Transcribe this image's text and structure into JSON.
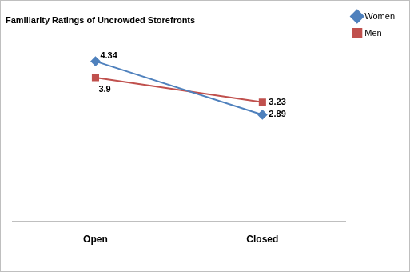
{
  "chart_data": {
    "type": "line",
    "title": "Familiarity Ratings of Uncrowded Storefronts",
    "categories": [
      "Open",
      "Closed"
    ],
    "series": [
      {
        "name": "Women",
        "color": "#4f81bd",
        "marker": "diamond",
        "values": [
          4.34,
          2.89
        ]
      },
      {
        "name": "Men",
        "color": "#c0504d",
        "marker": "square",
        "values": [
          3.9,
          3.23
        ]
      }
    ],
    "ylim": [
      0,
      5
    ],
    "yticks": [
      0,
      1,
      2,
      3,
      4,
      5
    ],
    "grid": false,
    "legend": "top right",
    "data_labels": true,
    "tick_labels": "x"
  }
}
